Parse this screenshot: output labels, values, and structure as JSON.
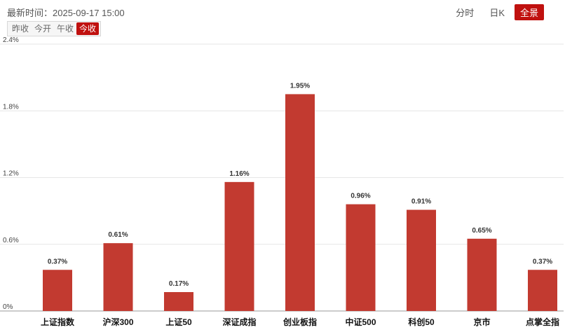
{
  "header": {
    "update_time": "最新时间：2025-09-17 15:00",
    "view_tabs": [
      {
        "label": "分时",
        "active": false
      },
      {
        "label": "日K",
        "active": false
      },
      {
        "label": "全景",
        "active": true
      }
    ],
    "session_tabs": [
      {
        "label": "昨收",
        "active": false
      },
      {
        "label": "今开",
        "active": false
      },
      {
        "label": "午收",
        "active": false
      },
      {
        "label": "今收",
        "active": true
      }
    ]
  },
  "colors": {
    "accent": "#c0110f",
    "bar": "#c23a30",
    "grid": "#e6e6e6"
  },
  "chart_data": {
    "type": "bar",
    "categories": [
      "上证指数",
      "沪深300",
      "上证50",
      "深证成指",
      "创业板指",
      "中证500",
      "科创50",
      "京市",
      "点掌全指"
    ],
    "values": [
      0.37,
      0.61,
      0.17,
      1.16,
      1.95,
      0.96,
      0.91,
      0.65,
      0.37
    ],
    "value_labels": [
      "0.37%",
      "0.61%",
      "0.17%",
      "1.16%",
      "1.95%",
      "0.96%",
      "0.91%",
      "0.65%",
      "0.37%"
    ],
    "y_ticks": [
      0,
      0.6,
      1.2,
      1.8,
      2.4
    ],
    "y_tick_labels": [
      "0%",
      "0.6%",
      "1.2%",
      "1.8%",
      "2.4%"
    ],
    "ylim": [
      0,
      2.4
    ],
    "grid": true
  }
}
